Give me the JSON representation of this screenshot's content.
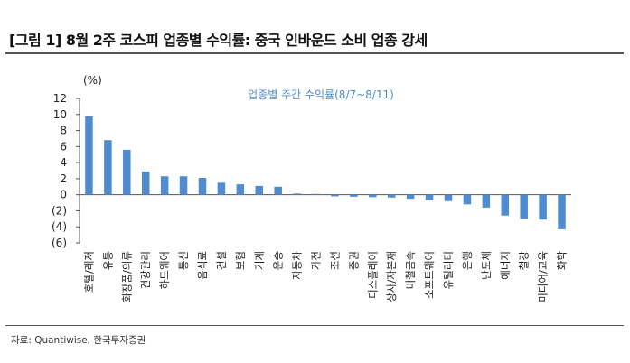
{
  "header": {
    "title": "[그림 1] 8월 2주 코스피 업종별 수익률: 중국 인바운드 소비 업종 강세"
  },
  "footer": {
    "source": "자료: Quantiwise,  한국투자증권"
  },
  "colors": {
    "bar": "#4f8ccf",
    "axis": "#555555"
  },
  "chart_data": {
    "type": "bar",
    "title": "업종별 주간 수익률(8/7~8/11)",
    "unit_label": "(%)",
    "ylim": [
      -6,
      12
    ],
    "yticks": [
      {
        "value": 12,
        "label": "12"
      },
      {
        "value": 10,
        "label": "10"
      },
      {
        "value": 8,
        "label": "8"
      },
      {
        "value": 6,
        "label": "6"
      },
      {
        "value": 4,
        "label": "4"
      },
      {
        "value": 2,
        "label": "2"
      },
      {
        "value": 0,
        "label": "0"
      },
      {
        "value": -2,
        "label": "(2)"
      },
      {
        "value": -4,
        "label": "(4)"
      },
      {
        "value": -6,
        "label": "(6)"
      }
    ],
    "grid": false,
    "categories": [
      "호텔/레저",
      "유통",
      "화장품/의류",
      "건강관리",
      "하드웨어",
      "통신",
      "음식료",
      "건설",
      "보험",
      "기계",
      "운송",
      "자동차",
      "가전",
      "조선",
      "증권",
      "디스플레이",
      "상사/자본재",
      "비철금속",
      "소프트웨어",
      "유틸리티",
      "은행",
      "반도체",
      "에너지",
      "철강",
      "미디어/교육",
      "화학"
    ],
    "values": [
      9.8,
      6.8,
      5.6,
      2.9,
      2.3,
      2.3,
      2.1,
      1.5,
      1.3,
      1.1,
      1.0,
      0.15,
      0.1,
      -0.2,
      -0.25,
      -0.3,
      -0.35,
      -0.5,
      -0.7,
      -0.8,
      -1.2,
      -1.6,
      -2.6,
      -3.0,
      -3.1,
      -4.3
    ]
  }
}
